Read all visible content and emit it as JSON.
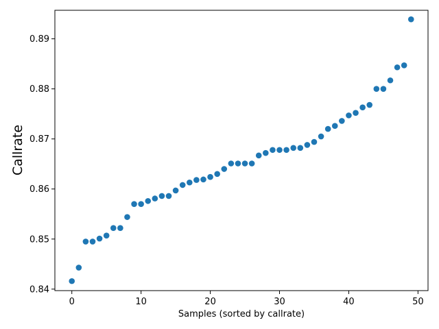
{
  "chart_data": {
    "type": "scatter",
    "title": "",
    "xlabel": "Samples (sorted by callrate)",
    "ylabel": "Callrate",
    "xlim": [
      -2.45,
      51.45
    ],
    "ylim": [
      0.8397,
      0.8957
    ],
    "xticks": [
      0,
      10,
      20,
      30,
      40,
      50
    ],
    "xtick_labels": [
      "0",
      "10",
      "20",
      "30",
      "40",
      "50"
    ],
    "yticks": [
      0.84,
      0.85,
      0.86,
      0.87,
      0.88,
      0.89
    ],
    "ytick_labels": [
      "0.84",
      "0.85",
      "0.86",
      "0.87",
      "0.88",
      "0.89"
    ],
    "grid": false,
    "legend": "none",
    "marker_color": "#1f77b4",
    "x": [
      0,
      1,
      2,
      3,
      4,
      5,
      6,
      7,
      8,
      9,
      10,
      11,
      12,
      13,
      14,
      15,
      16,
      17,
      18,
      19,
      20,
      21,
      22,
      23,
      24,
      25,
      26,
      27,
      28,
      29,
      30,
      31,
      32,
      33,
      34,
      35,
      36,
      37,
      38,
      39,
      40,
      41,
      42,
      43,
      44,
      45,
      46,
      47,
      48,
      49
    ],
    "y": [
      0.8416,
      0.8443,
      0.8495,
      0.8495,
      0.8501,
      0.8507,
      0.8522,
      0.8522,
      0.8544,
      0.857,
      0.857,
      0.8576,
      0.8581,
      0.8586,
      0.8586,
      0.8597,
      0.8608,
      0.8613,
      0.8618,
      0.8619,
      0.8624,
      0.863,
      0.864,
      0.8651,
      0.8651,
      0.8651,
      0.8651,
      0.8667,
      0.8672,
      0.8678,
      0.8678,
      0.8678,
      0.8682,
      0.8682,
      0.8688,
      0.8694,
      0.8705,
      0.872,
      0.8726,
      0.8736,
      0.8747,
      0.8752,
      0.8763,
      0.8768,
      0.88,
      0.88,
      0.8817,
      0.8843,
      0.8847,
      0.8939
    ]
  }
}
